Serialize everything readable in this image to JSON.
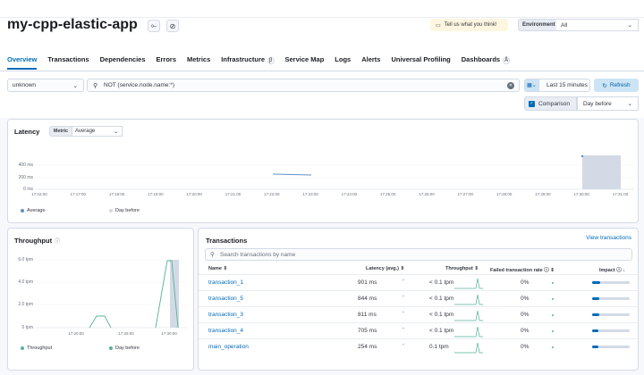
{
  "header": {
    "title": "my-cpp-elastic-app",
    "feedback_label": "Tell us what you think!",
    "environment_label": "Environment",
    "environment_value": "All"
  },
  "tabs": [
    {
      "label": "Overview",
      "selected": true
    },
    {
      "label": "Transactions"
    },
    {
      "label": "Dependencies"
    },
    {
      "label": "Errors"
    },
    {
      "label": "Metrics"
    },
    {
      "label": "Infrastructure"
    },
    {
      "label": "Service Map"
    },
    {
      "label": "Logs"
    },
    {
      "label": "Alerts"
    },
    {
      "label": "Universal Profiling"
    },
    {
      "label": "Dashboards"
    }
  ],
  "filters": {
    "service_node": "unknown",
    "query": "NOT (service.node.name:*)",
    "time_range": "Last 15 minutes",
    "refresh_label": "Refresh",
    "comparison_label": "Comparison",
    "comparison_value": "Day before"
  },
  "latency": {
    "title": "Latency",
    "metric_label": "Metric",
    "metric_value": "Average",
    "yticks": [
      "400 ms",
      "200 ms",
      "0 ms"
    ],
    "xticks": [
      "17:16:00",
      "17:17:00",
      "17:18:00",
      "17:19:00",
      "17:20:00",
      "17:21:00",
      "17:22:00",
      "17:23:00",
      "17:24:00",
      "17:25:00",
      "17:26:00",
      "17:27:00",
      "17:28:00",
      "17:29:00",
      "17:30:00",
      "17:31:00"
    ],
    "legend": [
      "Average",
      "Day before"
    ]
  },
  "throughput": {
    "title": "Throughput",
    "yticks": [
      "6.0 tpm",
      "4.0 tpm",
      "2.0 tpm",
      "0 tpm"
    ],
    "xticks": [
      "17:20:00",
      "17:25:00",
      "17:30:00"
    ],
    "legend": [
      "Throughput",
      "Day before"
    ]
  },
  "transactions": {
    "title": "Transactions",
    "view_link": "View transactions",
    "search_placeholder": "Search transactions by name",
    "columns": [
      "Name",
      "Latency (avg.)",
      "Throughput",
      "Failed transaction rate",
      "Impact"
    ],
    "rows": [
      {
        "name": "transaction_1",
        "latency": "901 ms",
        "throughput": "< 0.1 tpm",
        "failed": "0%",
        "impact": 0.22
      },
      {
        "name": "transaction_5",
        "latency": "844 ms",
        "throughput": "< 0.1 tpm",
        "failed": "0%",
        "impact": 0.2
      },
      {
        "name": "transaction_3",
        "latency": "811 ms",
        "throughput": "< 0.1 tpm",
        "failed": "0%",
        "impact": 0.19
      },
      {
        "name": "transaction_4",
        "latency": "705 ms",
        "throughput": "< 0.1 tpm",
        "failed": "0%",
        "impact": 0.17
      },
      {
        "name": "main_operation",
        "latency": "254 ms",
        "throughput": "0.1 tpm",
        "failed": "0%",
        "impact": 0.16
      }
    ]
  },
  "colors": {
    "accent": "#006bb8",
    "series": "#54b399",
    "dayBefore": "#d3dae6",
    "average": "#6092c0"
  }
}
